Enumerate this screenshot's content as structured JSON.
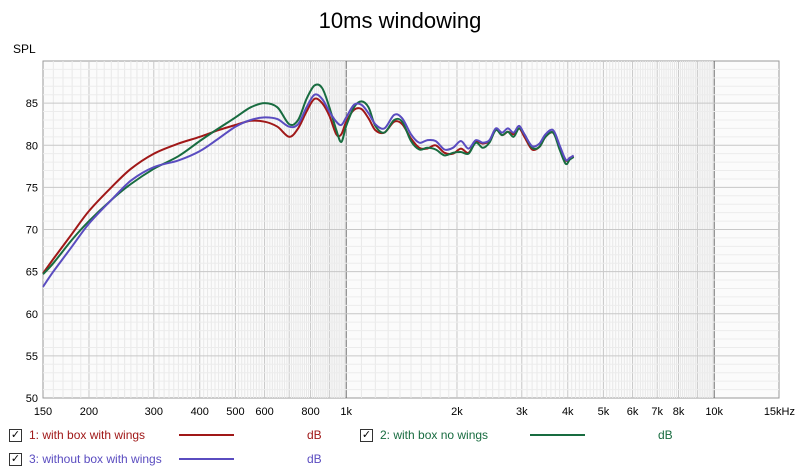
{
  "chart_data": {
    "type": "line",
    "title": "10ms windowing",
    "ylabel": "SPL",
    "xlabel": "",
    "xscale": "log",
    "xlim": [
      150,
      15000
    ],
    "ylim": [
      50,
      90
    ],
    "grid": true,
    "x_tick_labels": [
      {
        "v": 150,
        "t": "150"
      },
      {
        "v": 200,
        "t": "200"
      },
      {
        "v": 300,
        "t": "300"
      },
      {
        "v": 400,
        "t": "400"
      },
      {
        "v": 500,
        "t": "500"
      },
      {
        "v": 600,
        "t": "600"
      },
      {
        "v": 800,
        "t": "800"
      },
      {
        "v": 1000,
        "t": "1k"
      },
      {
        "v": 2000,
        "t": "2k"
      },
      {
        "v": 3000,
        "t": "3k"
      },
      {
        "v": 4000,
        "t": "4k"
      },
      {
        "v": 5000,
        "t": "5k"
      },
      {
        "v": 6000,
        "t": "6k"
      },
      {
        "v": 7000,
        "t": "7k"
      },
      {
        "v": 8000,
        "t": "8k"
      },
      {
        "v": 10000,
        "t": "10k"
      },
      {
        "v": 15000,
        "t": "15kHz"
      }
    ],
    "y_ticks": [
      50,
      55,
      60,
      65,
      70,
      75,
      80,
      85
    ],
    "series": [
      {
        "name": "1: with box with wings",
        "unit": "dB",
        "color": "#a01818",
        "points": [
          [
            150,
            64.8
          ],
          [
            160,
            66.5
          ],
          [
            180,
            69.5
          ],
          [
            200,
            72.2
          ],
          [
            230,
            75
          ],
          [
            260,
            77.2
          ],
          [
            300,
            79
          ],
          [
            350,
            80.2
          ],
          [
            400,
            81
          ],
          [
            450,
            81.8
          ],
          [
            500,
            82.4
          ],
          [
            550,
            82.9
          ],
          [
            600,
            82.8
          ],
          [
            650,
            82.2
          ],
          [
            700,
            81
          ],
          [
            740,
            82
          ],
          [
            780,
            84
          ],
          [
            820,
            85.5
          ],
          [
            860,
            85
          ],
          [
            900,
            83.5
          ],
          [
            940,
            81.3
          ],
          [
            970,
            81.3
          ],
          [
            1000,
            82.8
          ],
          [
            1050,
            84.2
          ],
          [
            1100,
            84.3
          ],
          [
            1150,
            83.2
          ],
          [
            1200,
            81.8
          ],
          [
            1270,
            81.5
          ],
          [
            1350,
            82.8
          ],
          [
            1420,
            82.5
          ],
          [
            1500,
            80.8
          ],
          [
            1580,
            79.7
          ],
          [
            1660,
            79.6
          ],
          [
            1750,
            80
          ],
          [
            1850,
            79.1
          ],
          [
            1950,
            79
          ],
          [
            2050,
            79.6
          ],
          [
            2150,
            79.1
          ],
          [
            2250,
            80.4
          ],
          [
            2350,
            80.2
          ],
          [
            2450,
            80.5
          ],
          [
            2550,
            81.9
          ],
          [
            2650,
            81.2
          ],
          [
            2750,
            81.6
          ],
          [
            2850,
            81.3
          ],
          [
            2950,
            82
          ],
          [
            3050,
            81
          ],
          [
            3200,
            79.5
          ],
          [
            3350,
            79.8
          ],
          [
            3480,
            81
          ],
          [
            3650,
            81.5
          ],
          [
            3800,
            79.8
          ],
          [
            3950,
            78.2
          ],
          [
            4050,
            78.5
          ],
          [
            4150,
            78.7
          ]
        ]
      },
      {
        "name": "2: with box no wings",
        "unit": "dB",
        "color": "#186c40",
        "points": [
          [
            150,
            64.7
          ],
          [
            160,
            66
          ],
          [
            180,
            68.8
          ],
          [
            200,
            71
          ],
          [
            230,
            73.5
          ],
          [
            260,
            75.4
          ],
          [
            300,
            77.2
          ],
          [
            350,
            78.7
          ],
          [
            400,
            80.5
          ],
          [
            450,
            82
          ],
          [
            500,
            83.3
          ],
          [
            550,
            84.5
          ],
          [
            600,
            85
          ],
          [
            650,
            84.5
          ],
          [
            700,
            82.5
          ],
          [
            740,
            83
          ],
          [
            780,
            85.5
          ],
          [
            820,
            87.1
          ],
          [
            860,
            86.8
          ],
          [
            900,
            84.5
          ],
          [
            940,
            81.8
          ],
          [
            970,
            80.4
          ],
          [
            1000,
            82.3
          ],
          [
            1050,
            84.5
          ],
          [
            1100,
            85.2
          ],
          [
            1150,
            84.5
          ],
          [
            1200,
            82.3
          ],
          [
            1270,
            81.5
          ],
          [
            1350,
            83
          ],
          [
            1420,
            82.8
          ],
          [
            1500,
            80.5
          ],
          [
            1580,
            79.5
          ],
          [
            1660,
            79.7
          ],
          [
            1750,
            79.5
          ],
          [
            1850,
            78.8
          ],
          [
            1950,
            79.1
          ],
          [
            2050,
            79.2
          ],
          [
            2150,
            79
          ],
          [
            2250,
            80.3
          ],
          [
            2350,
            79.7
          ],
          [
            2450,
            80.3
          ],
          [
            2550,
            81.8
          ],
          [
            2650,
            81.2
          ],
          [
            2750,
            81.6
          ],
          [
            2850,
            81
          ],
          [
            2950,
            82
          ],
          [
            3050,
            81.3
          ],
          [
            3200,
            79.7
          ],
          [
            3350,
            79.8
          ],
          [
            3480,
            81
          ],
          [
            3650,
            81.5
          ],
          [
            3800,
            79.5
          ],
          [
            3950,
            77.8
          ],
          [
            4050,
            78.3
          ],
          [
            4150,
            78.6
          ]
        ]
      },
      {
        "name": "3: without box with wings",
        "unit": "dB",
        "color": "#5a4cc0",
        "points": [
          [
            150,
            63.2
          ],
          [
            160,
            65
          ],
          [
            180,
            68
          ],
          [
            200,
            70.7
          ],
          [
            230,
            73.5
          ],
          [
            260,
            75.8
          ],
          [
            300,
            77.4
          ],
          [
            350,
            78.2
          ],
          [
            400,
            79.3
          ],
          [
            450,
            80.8
          ],
          [
            500,
            82.2
          ],
          [
            550,
            83
          ],
          [
            600,
            83.3
          ],
          [
            650,
            83.1
          ],
          [
            700,
            82.2
          ],
          [
            740,
            82.5
          ],
          [
            780,
            84.5
          ],
          [
            820,
            86
          ],
          [
            860,
            85.5
          ],
          [
            900,
            84
          ],
          [
            940,
            82.8
          ],
          [
            970,
            82.4
          ],
          [
            1000,
            83.3
          ],
          [
            1050,
            84.8
          ],
          [
            1100,
            84.8
          ],
          [
            1150,
            83.8
          ],
          [
            1200,
            82.5
          ],
          [
            1270,
            82
          ],
          [
            1350,
            83.6
          ],
          [
            1420,
            83.2
          ],
          [
            1500,
            81.3
          ],
          [
            1580,
            80.3
          ],
          [
            1660,
            80.6
          ],
          [
            1750,
            80.5
          ],
          [
            1850,
            79.5
          ],
          [
            1950,
            79.7
          ],
          [
            2050,
            80.5
          ],
          [
            2150,
            79.6
          ],
          [
            2250,
            80.6
          ],
          [
            2350,
            80.3
          ],
          [
            2450,
            80.6
          ],
          [
            2550,
            82
          ],
          [
            2650,
            81.5
          ],
          [
            2750,
            82
          ],
          [
            2850,
            81.5
          ],
          [
            2950,
            82.3
          ],
          [
            3050,
            81.3
          ],
          [
            3200,
            79.9
          ],
          [
            3350,
            80.2
          ],
          [
            3480,
            81.3
          ],
          [
            3650,
            81.8
          ],
          [
            3800,
            80
          ],
          [
            3950,
            78.3
          ],
          [
            4050,
            78.5
          ],
          [
            4150,
            78.8
          ]
        ]
      }
    ]
  },
  "legend": [
    {
      "check": "✓",
      "label": "1: with box with wings",
      "unit": "dB",
      "color": "#a01818"
    },
    {
      "check": "✓",
      "label": "2: with box no wings",
      "unit": "dB",
      "color": "#186c40"
    },
    {
      "check": "✓",
      "label": "3: without box with wings",
      "unit": "dB",
      "color": "#5a4cc0"
    }
  ]
}
